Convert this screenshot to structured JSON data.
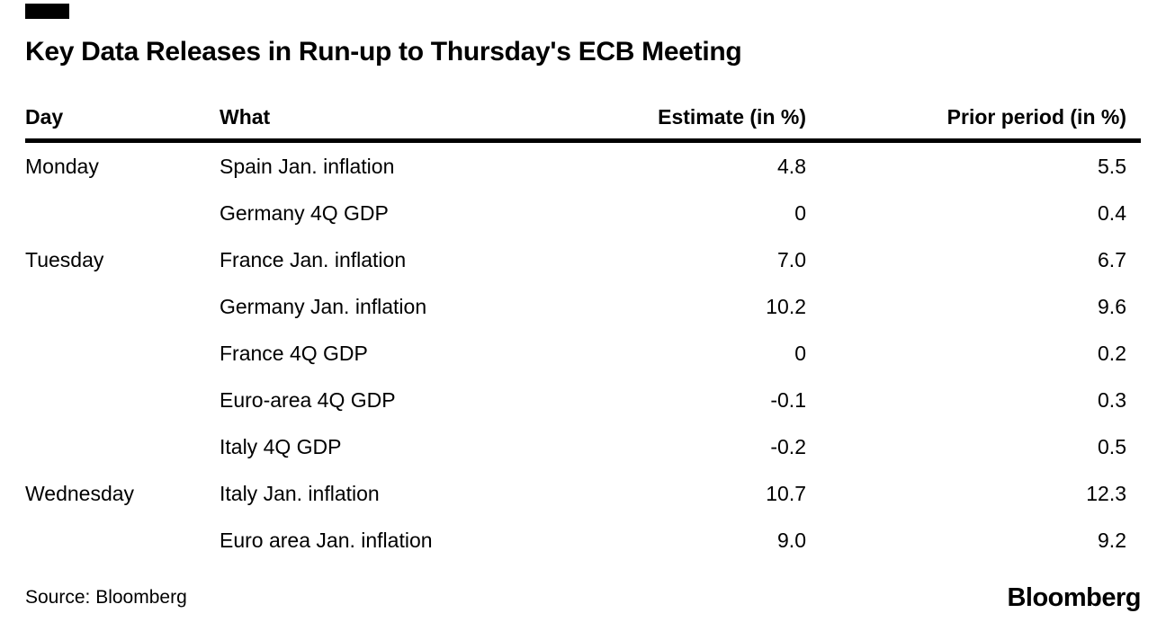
{
  "title": "Key Data Releases in Run-up to Thursday's ECB Meeting",
  "chart_data": {
    "type": "table",
    "title": "Key Data Releases in Run-up to Thursday's ECB Meeting",
    "columns": [
      "Day",
      "What",
      "Estimate (in %)",
      "Prior period (in %)"
    ],
    "rows": [
      {
        "day": "Monday",
        "what": "Spain Jan. inflation",
        "estimate": "4.8",
        "prior": "5.5"
      },
      {
        "day": "",
        "what": "Germany 4Q GDP",
        "estimate": "0",
        "prior": "0.4"
      },
      {
        "day": "Tuesday",
        "what": "France Jan. inflation",
        "estimate": "7.0",
        "prior": "6.7"
      },
      {
        "day": "",
        "what": "Germany Jan. inflation",
        "estimate": "10.2",
        "prior": "9.6"
      },
      {
        "day": "",
        "what": "France 4Q GDP",
        "estimate": "0",
        "prior": "0.2"
      },
      {
        "day": "",
        "what": "Euro-area 4Q GDP",
        "estimate": "-0.1",
        "prior": "0.3"
      },
      {
        "day": "",
        "what": "Italy 4Q GDP",
        "estimate": "-0.2",
        "prior": "0.5"
      },
      {
        "day": "Wednesday",
        "what": "Italy Jan. inflation",
        "estimate": "10.7",
        "prior": "12.3"
      },
      {
        "day": "",
        "what": "Euro area Jan. inflation",
        "estimate": "9.0",
        "prior": "9.2"
      }
    ],
    "source": "Bloomberg",
    "layout": {
      "grid": "off",
      "header_rule": "thick-black"
    }
  },
  "footer": {
    "source_label": "Source: Bloomberg",
    "brand_logo": "Bloomberg"
  },
  "colors": {
    "background": "#ffffff",
    "text": "#000000",
    "rule": "#000000",
    "flag": "#000000"
  }
}
